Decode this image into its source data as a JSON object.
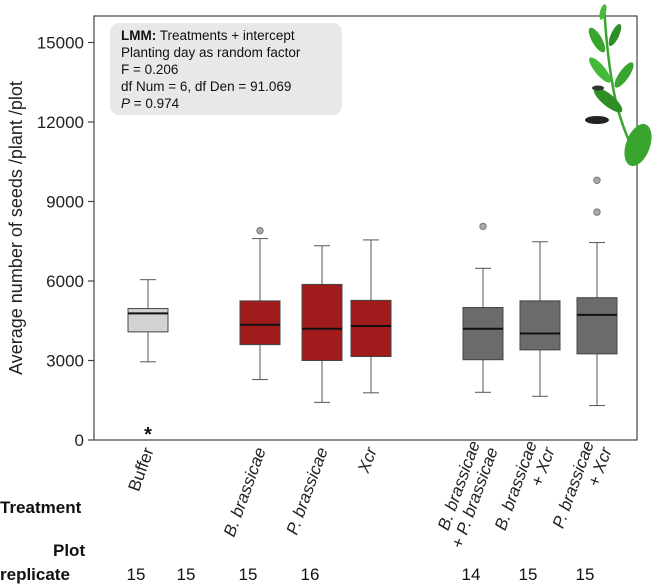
{
  "chart_data": {
    "type": "box",
    "ylabel": "Average number of seeds /plant /plot",
    "ylim": [
      0,
      16000
    ],
    "yticks": [
      0,
      3000,
      6000,
      9000,
      12000,
      15000
    ],
    "grid": false,
    "groups": [
      {
        "label": "Buffer",
        "italic": false,
        "color": "#d3d3d3",
        "whisker_low": 2950,
        "q1": 4080,
        "median": 4780,
        "q3": 4960,
        "whisker_high": 6050,
        "outliers": [],
        "replicates": "15",
        "annotation": "*",
        "annotation_value": 270
      },
      {
        "label": "",
        "italic": false,
        "color": "",
        "empty": true,
        "replicates": "15"
      },
      {
        "label": "B. brassicae",
        "italic": true,
        "color": "#a01c1c",
        "whisker_low": 2280,
        "q1": 3600,
        "median": 4350,
        "q3": 5250,
        "whisker_high": 7600,
        "outliers": [
          7900
        ],
        "replicates": "15"
      },
      {
        "label": "P. brassicae",
        "italic": true,
        "color": "#a01c1c",
        "whisker_low": 1420,
        "q1": 3000,
        "median": 4200,
        "q3": 5870,
        "whisker_high": 7330,
        "outliers": [],
        "replicates": "16"
      },
      {
        "label": "Xcr",
        "italic": true,
        "color": "#a01c1c",
        "whisker_low": 1780,
        "q1": 3150,
        "median": 4300,
        "q3": 5270,
        "whisker_high": 7550,
        "outliers": [],
        "replicates": ""
      },
      {
        "label": "",
        "italic": false,
        "color": "",
        "empty": true,
        "replicates": ""
      },
      {
        "label": "B. brassicae\n+ P. brassicae",
        "italic": true,
        "color": "#6b6b6b",
        "whisker_low": 1800,
        "q1": 3030,
        "median": 4200,
        "q3": 5000,
        "whisker_high": 6480,
        "outliers": [
          8060
        ],
        "replicates": "14"
      },
      {
        "label": "B. brassicae\n+ Xcr",
        "italic": true,
        "color": "#6b6b6b",
        "whisker_low": 1650,
        "q1": 3400,
        "median": 4020,
        "q3": 5250,
        "whisker_high": 7480,
        "outliers": [],
        "replicates": "15"
      },
      {
        "label": "P. brassicae\n+ Xcr",
        "italic": true,
        "color": "#6b6b6b",
        "whisker_low": 1300,
        "q1": 3250,
        "median": 4720,
        "q3": 5370,
        "whisker_high": 7450,
        "outliers": [
          8600,
          9800
        ],
        "replicates": "15"
      }
    ],
    "stats_box": {
      "title_bold": "LMM:",
      "title_rest": " Treatments + intercept",
      "line2": "Planting day as random factor",
      "line3": "F = 0.206",
      "line4": "df Num = 6, df Den = 91.069",
      "line5_label": "P",
      "line5_value": " = 0.974"
    }
  },
  "row_labels": {
    "treatment": "Treatment",
    "plot": "Plot",
    "replicate": "replicate"
  },
  "colors": {
    "control_fill": "#d3d3d3",
    "single_fill": "#a01c1c",
    "combo_fill": "#6b6b6b",
    "stats_bg": "#e8e8e8",
    "plant_green": "#3aa52e"
  }
}
